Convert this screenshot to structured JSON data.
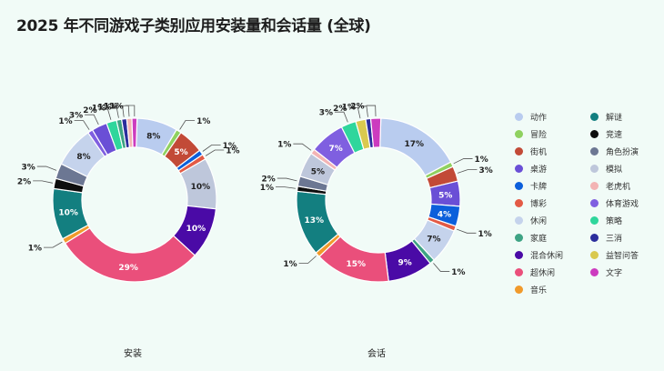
{
  "title": "2025 年不同游戏子类别应用安装量和会话量 (全球)",
  "legend": [
    {
      "label": "动作",
      "color": "#b9ccef"
    },
    {
      "label": "解谜",
      "color": "#137f80"
    },
    {
      "label": "冒险",
      "color": "#8fd160"
    },
    {
      "label": "竞速",
      "color": "#0e0e0e"
    },
    {
      "label": "街机",
      "color": "#c24a37"
    },
    {
      "label": "角色扮演",
      "color": "#6c7793"
    },
    {
      "label": "桌游",
      "color": "#6a4fd6"
    },
    {
      "label": "模拟",
      "color": "#bec7db"
    },
    {
      "label": "卡牌",
      "color": "#0c5fdb"
    },
    {
      "label": "老虎机",
      "color": "#f3b4b4"
    },
    {
      "label": "博彩",
      "color": "#e35a45"
    },
    {
      "label": "体育游戏",
      "color": "#7f5fe0"
    },
    {
      "label": "休闲",
      "color": "#c5d3ec"
    },
    {
      "label": "策略",
      "color": "#2fd69c"
    },
    {
      "label": "家庭",
      "color": "#3ea384"
    },
    {
      "label": "三消",
      "color": "#2b2d9c"
    },
    {
      "label": "混合休闲",
      "color": "#4a0aa6"
    },
    {
      "label": "益智问答",
      "color": "#d9c94f"
    },
    {
      "label": "超休闲",
      "color": "#ea4f7b"
    },
    {
      "label": "文字",
      "color": "#cc3bbf"
    },
    {
      "label": "音乐",
      "color": "#f19a2b"
    }
  ],
  "chart_data": [
    {
      "type": "pie",
      "title": "安装",
      "segments": [
        {
          "category": "动作",
          "value": 8,
          "label": "8%"
        },
        {
          "category": "冒险",
          "value": 1,
          "label": "1%"
        },
        {
          "category": "街机",
          "value": 5,
          "label": "5%"
        },
        {
          "category": "卡牌",
          "value": 1,
          "label": "1%"
        },
        {
          "category": "博彩",
          "value": 1,
          "label": "1%"
        },
        {
          "category": "模拟",
          "value": 10,
          "label": "10%"
        },
        {
          "category": "混合休闲",
          "value": 10,
          "label": "10%"
        },
        {
          "category": "超休闲",
          "value": 29,
          "label": "29%"
        },
        {
          "category": "音乐",
          "value": 1,
          "label": "1%"
        },
        {
          "category": "解谜",
          "value": 10,
          "label": "10%"
        },
        {
          "category": "竞速",
          "value": 2,
          "label": "2%"
        },
        {
          "category": "角色扮演",
          "value": 3,
          "label": "3%"
        },
        {
          "category": "休闲",
          "value": 8,
          "label": "8%"
        },
        {
          "category": "体育游戏",
          "value": 1,
          "label": "1%"
        },
        {
          "category": "桌游",
          "value": 3,
          "label": "3%"
        },
        {
          "category": "策略",
          "value": 2,
          "label": "2%"
        },
        {
          "category": "家庭",
          "value": 1,
          "label": "1%"
        },
        {
          "category": "三消",
          "value": 1,
          "label": "1%"
        },
        {
          "category": "老虎机",
          "value": 1,
          "label": "1%"
        },
        {
          "category": "文字",
          "value": 1,
          "label": "1%"
        }
      ]
    },
    {
      "type": "pie",
      "title": "会话",
      "segments": [
        {
          "category": "动作",
          "value": 17,
          "label": "17%"
        },
        {
          "category": "冒险",
          "value": 1,
          "label": "1%"
        },
        {
          "category": "街机",
          "value": 3,
          "label": "3%"
        },
        {
          "category": "桌游",
          "value": 5,
          "label": "5%"
        },
        {
          "category": "卡牌",
          "value": 4,
          "label": "4%"
        },
        {
          "category": "博彩",
          "value": 1,
          "label": "1%"
        },
        {
          "category": "休闲",
          "value": 7,
          "label": "7%"
        },
        {
          "category": "家庭",
          "value": 1,
          "label": "1%"
        },
        {
          "category": "混合休闲",
          "value": 9,
          "label": "9%"
        },
        {
          "category": "超休闲",
          "value": 15,
          "label": "15%"
        },
        {
          "category": "音乐",
          "value": 1,
          "label": "1%"
        },
        {
          "category": "解谜",
          "value": 13,
          "label": "13%"
        },
        {
          "category": "竞速",
          "value": 1,
          "label": "1%"
        },
        {
          "category": "角色扮演",
          "value": 2,
          "label": "2%"
        },
        {
          "category": "模拟",
          "value": 5,
          "label": "5%"
        },
        {
          "category": "老虎机",
          "value": 1,
          "label": "1%"
        },
        {
          "category": "体育游戏",
          "value": 7,
          "label": "7%"
        },
        {
          "category": "策略",
          "value": 3,
          "label": "3%"
        },
        {
          "category": "益智问答",
          "value": 2,
          "label": "2%"
        },
        {
          "category": "三消",
          "value": 1,
          "label": "1%"
        },
        {
          "category": "文字",
          "value": 2,
          "label": "2%"
        }
      ]
    }
  ]
}
